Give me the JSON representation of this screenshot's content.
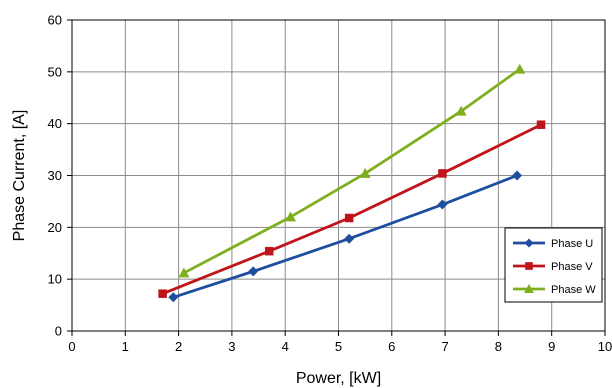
{
  "chart_data": {
    "type": "line",
    "title": "",
    "xlabel": "Power,  [kW]",
    "ylabel": "Phase Current, [A]",
    "xlim": [
      0,
      10
    ],
    "ylim": [
      0,
      60
    ],
    "x_ticks": [
      "0",
      "1",
      "2",
      "3",
      "4",
      "5",
      "6",
      "7",
      "8",
      "9",
      "10"
    ],
    "y_ticks": [
      "0",
      "10",
      "20",
      "30",
      "40",
      "50",
      "60"
    ],
    "grid": true,
    "legend_position": "bottom-right",
    "series": [
      {
        "name": "Phase U",
        "color": "#1F4E9E",
        "marker": "diamond",
        "points": [
          [
            1.9,
            6.5
          ],
          [
            3.4,
            11.5
          ],
          [
            5.2,
            17.8
          ],
          [
            6.95,
            24.4
          ],
          [
            8.35,
            30.0
          ]
        ]
      },
      {
        "name": "Phase V",
        "color": "#C0141B",
        "marker": "square",
        "points": [
          [
            1.7,
            7.2
          ],
          [
            3.7,
            15.4
          ],
          [
            5.2,
            21.8
          ],
          [
            6.95,
            30.4
          ],
          [
            8.8,
            39.8
          ]
        ]
      },
      {
        "name": "Phase W",
        "color": "#7FAE1F",
        "marker": "triangle",
        "points": [
          [
            2.1,
            11.2
          ],
          [
            4.1,
            22.0
          ],
          [
            5.5,
            30.4
          ],
          [
            7.3,
            42.4
          ],
          [
            8.4,
            50.5
          ]
        ]
      }
    ]
  }
}
